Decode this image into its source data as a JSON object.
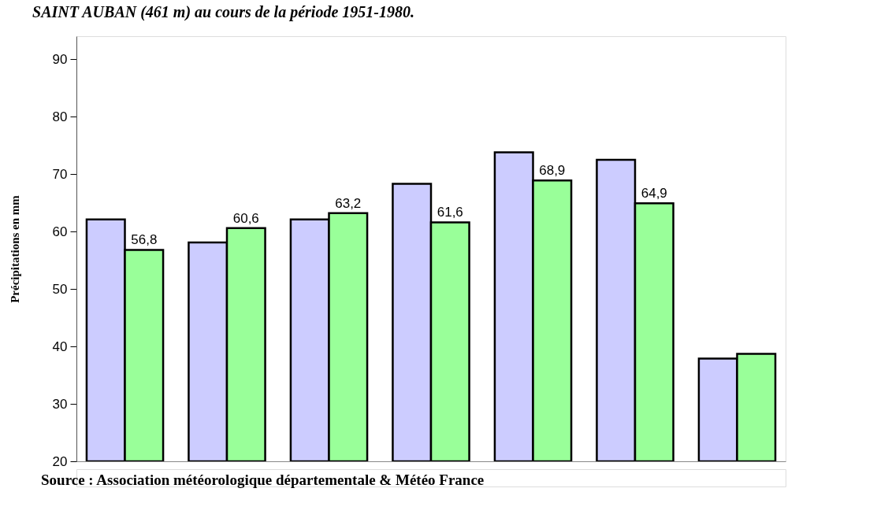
{
  "chart_data": {
    "type": "bar",
    "title": "SAINT AUBAN (461 m) au cours de la période 1951-1980.",
    "ylabel": "Précipitations en mm",
    "categories": [
      null,
      null,
      null,
      null,
      null,
      null,
      null
    ],
    "series": [
      {
        "color": "#ccccff",
        "values": [
          62.1,
          58.1,
          62.1,
          68.3,
          73.8,
          72.5,
          37.9
        ]
      },
      {
        "color": "#99ff99",
        "values": [
          56.8,
          60.6,
          63.2,
          61.6,
          68.9,
          64.9,
          38.7
        ],
        "value_labels": [
          "56,8",
          "60,6",
          "63,2",
          "61,6",
          "68,9",
          "64,9",
          null
        ]
      }
    ],
    "ylim": [
      20,
      94
    ],
    "yticks": [
      20,
      30,
      40,
      50,
      60,
      70,
      80,
      90
    ],
    "grid": false,
    "legend": false,
    "tick_labels": "y",
    "annotations": [
      "Source : Association météorologique départementale & Météo France"
    ]
  }
}
